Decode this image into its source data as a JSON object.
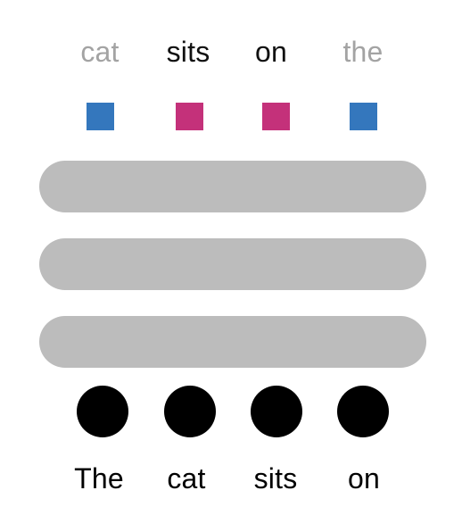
{
  "output_tokens": [
    {
      "text": "cat",
      "state": "context",
      "color": "#a3a3a3"
    },
    {
      "text": "sits",
      "state": "predicted",
      "color": "#111111"
    },
    {
      "text": "on",
      "state": "predicted",
      "color": "#111111"
    },
    {
      "text": "the",
      "state": "context",
      "color": "#a3a3a3"
    }
  ],
  "output_markers": [
    {
      "color": "#3477bd",
      "kind": "unmasked"
    },
    {
      "color": "#c4317a",
      "kind": "masked"
    },
    {
      "color": "#c4317a",
      "kind": "masked"
    },
    {
      "color": "#3477bd",
      "kind": "unmasked"
    }
  ],
  "layers": [
    {
      "color": "#bcbcbc"
    },
    {
      "color": "#bcbcbc"
    },
    {
      "color": "#bcbcbc"
    }
  ],
  "input_tokens": [
    {
      "text": "The",
      "color": "#000000"
    },
    {
      "text": "cat",
      "color": "#000000"
    },
    {
      "text": "sits",
      "color": "#000000"
    },
    {
      "text": "on",
      "color": "#000000"
    }
  ]
}
